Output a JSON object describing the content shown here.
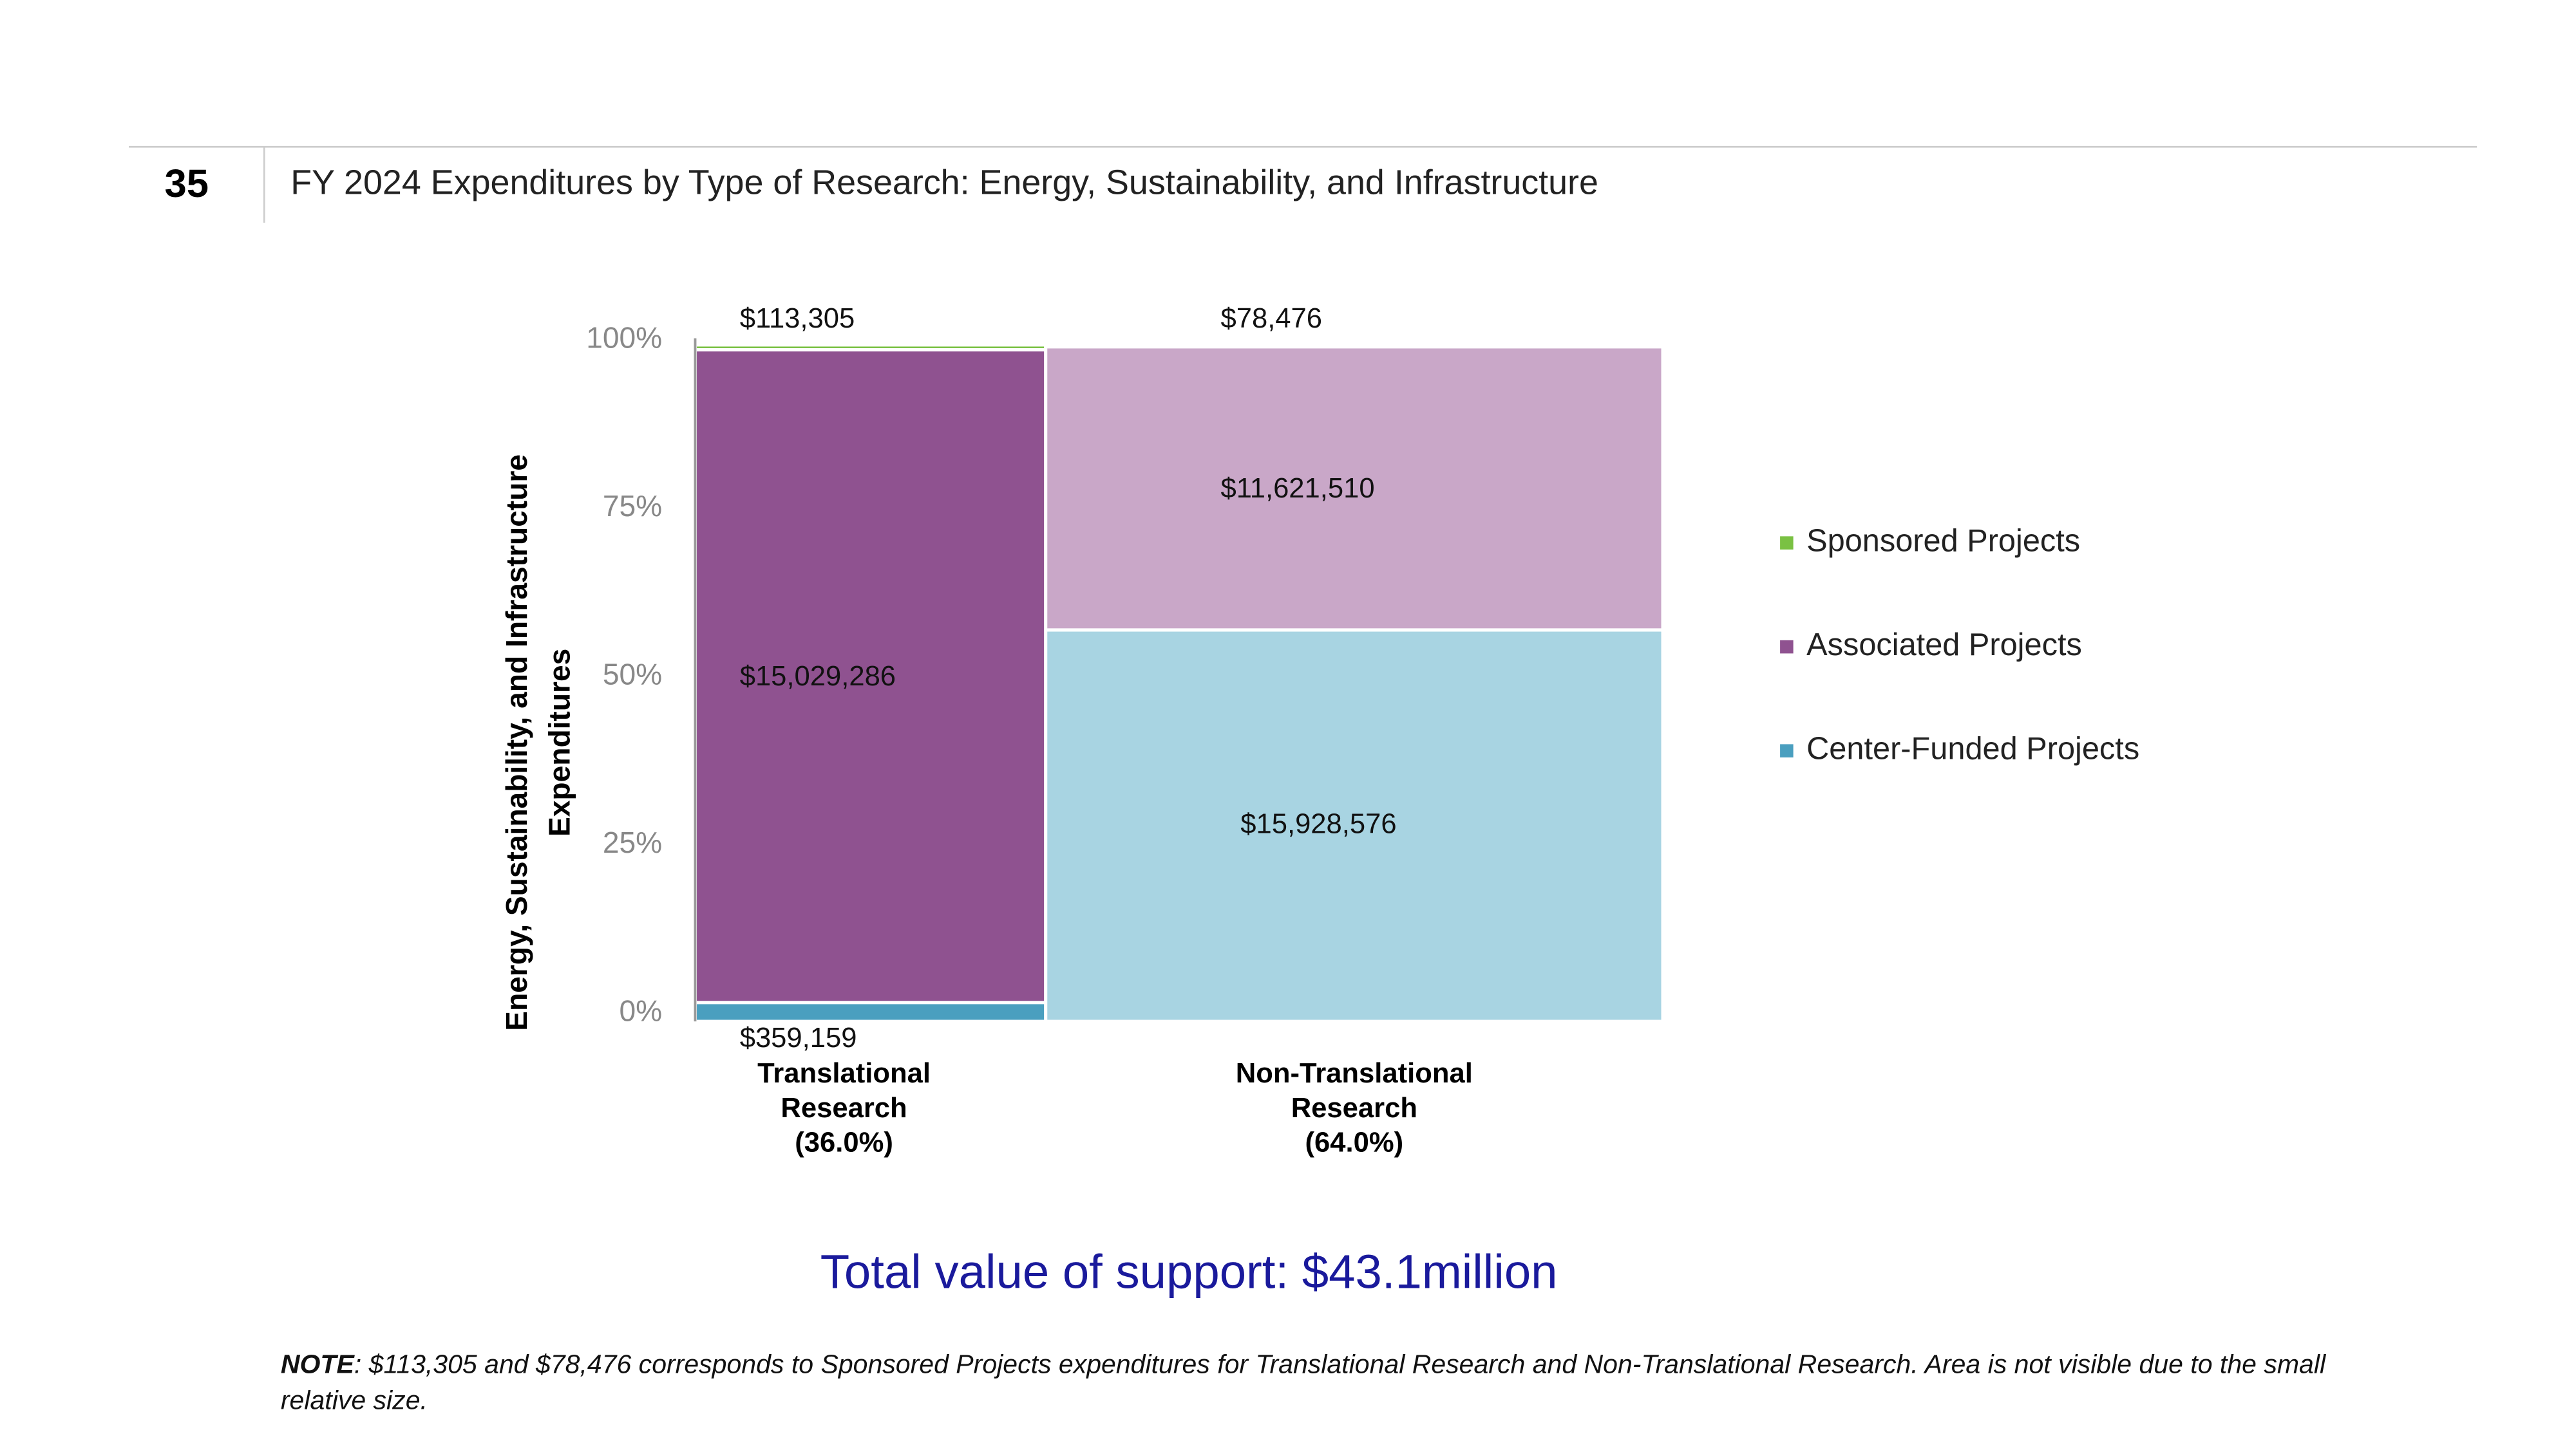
{
  "page_number": "35",
  "title": "FY 2024 Expenditures by Type of Research: Energy, Sustainability, and Infrastructure",
  "chart_data": {
    "type": "mekko",
    "y_label": "Energy, Sustainability, and Infrastructure Expenditures",
    "categories": [
      "Translational Research",
      "Non-Translational Research"
    ],
    "category_shares": [
      36.0,
      64.0
    ],
    "category_share_labels": [
      "(36.0%)",
      "(64.0%)"
    ],
    "ylim": [
      0,
      100
    ],
    "yticks": [
      {
        "value": 0,
        "label": "0%"
      },
      {
        "value": 25,
        "label": "25%"
      },
      {
        "value": 50,
        "label": "50%"
      },
      {
        "value": 75,
        "label": "75%"
      },
      {
        "value": 100,
        "label": "100%"
      }
    ],
    "series": [
      {
        "name": "Sponsored Projects",
        "color": "#7ac143",
        "bar_colors": [
          "#7ac143",
          "#b5dc8e"
        ],
        "values": [
          113305,
          78476
        ],
        "value_labels": [
          "$113,305",
          "$78,476"
        ]
      },
      {
        "name": "Associated Projects",
        "color": "#8f5290",
        "bar_colors": [
          "#8f5290",
          "#c9a7c8"
        ],
        "values": [
          15029286,
          11621510
        ],
        "value_labels": [
          "$15,029,286",
          "$11,621,510"
        ]
      },
      {
        "name": "Center-Funded Projects",
        "color": "#4a9fbf",
        "bar_colors": [
          "#4a9fbf",
          "#a8d4e2"
        ],
        "values": [
          359159,
          15928576
        ],
        "value_labels": [
          "$359,159",
          "$15,928,576"
        ]
      }
    ],
    "legend": "right"
  },
  "total_text": "Total value of support: $43.1million",
  "note": {
    "label": "NOTE",
    "text": ": $113,305 and $78,476 corresponds to Sponsored Projects expenditures for Translational Research and Non-Translational Research. Area is not visible due to the small relative size."
  }
}
